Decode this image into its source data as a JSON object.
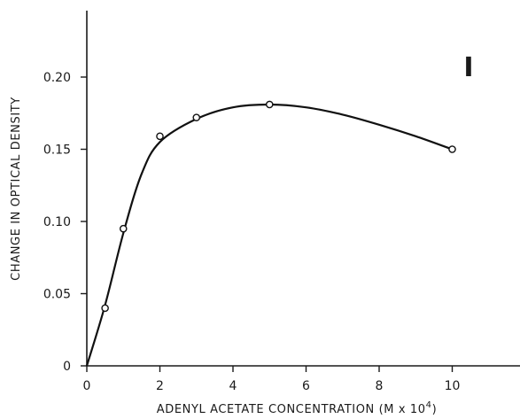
{
  "chart_data": {
    "type": "line",
    "panel_label": "I",
    "xlabel": "ADENYL ACETATE CONCENTRATION (M x 10",
    "xlabel_exponent": "4",
    "xlabel_close": ")",
    "ylabel": "CHANGE IN OPTICAL DENSITY",
    "xlim": [
      0,
      12
    ],
    "ylim": [
      0,
      0.25
    ],
    "x_ticks": [
      0,
      2,
      4,
      6,
      8,
      10
    ],
    "x_tick_labels": [
      "0",
      "2",
      "4",
      "6",
      "8",
      "10"
    ],
    "y_ticks": [
      0,
      0.05,
      0.1,
      0.15,
      0.2
    ],
    "y_tick_labels": [
      "0",
      "0.05",
      "0.10",
      "0.15",
      "0.20"
    ],
    "grid": false,
    "series": [
      {
        "x": [
          0.5,
          1,
          2,
          3,
          5,
          10
        ],
        "y": [
          0.04,
          0.095,
          0.159,
          0.172,
          0.181,
          0.15
        ]
      }
    ],
    "fit_curve": [
      [
        0,
        0
      ],
      [
        0.5,
        0.042
      ],
      [
        1,
        0.092
      ],
      [
        1.5,
        0.133
      ],
      [
        2,
        0.155
      ],
      [
        3,
        0.171
      ],
      [
        4,
        0.179
      ],
      [
        5,
        0.181
      ],
      [
        6,
        0.179
      ],
      [
        7,
        0.174
      ],
      [
        8,
        0.167
      ],
      [
        9,
        0.159
      ],
      [
        10,
        0.15
      ]
    ]
  }
}
